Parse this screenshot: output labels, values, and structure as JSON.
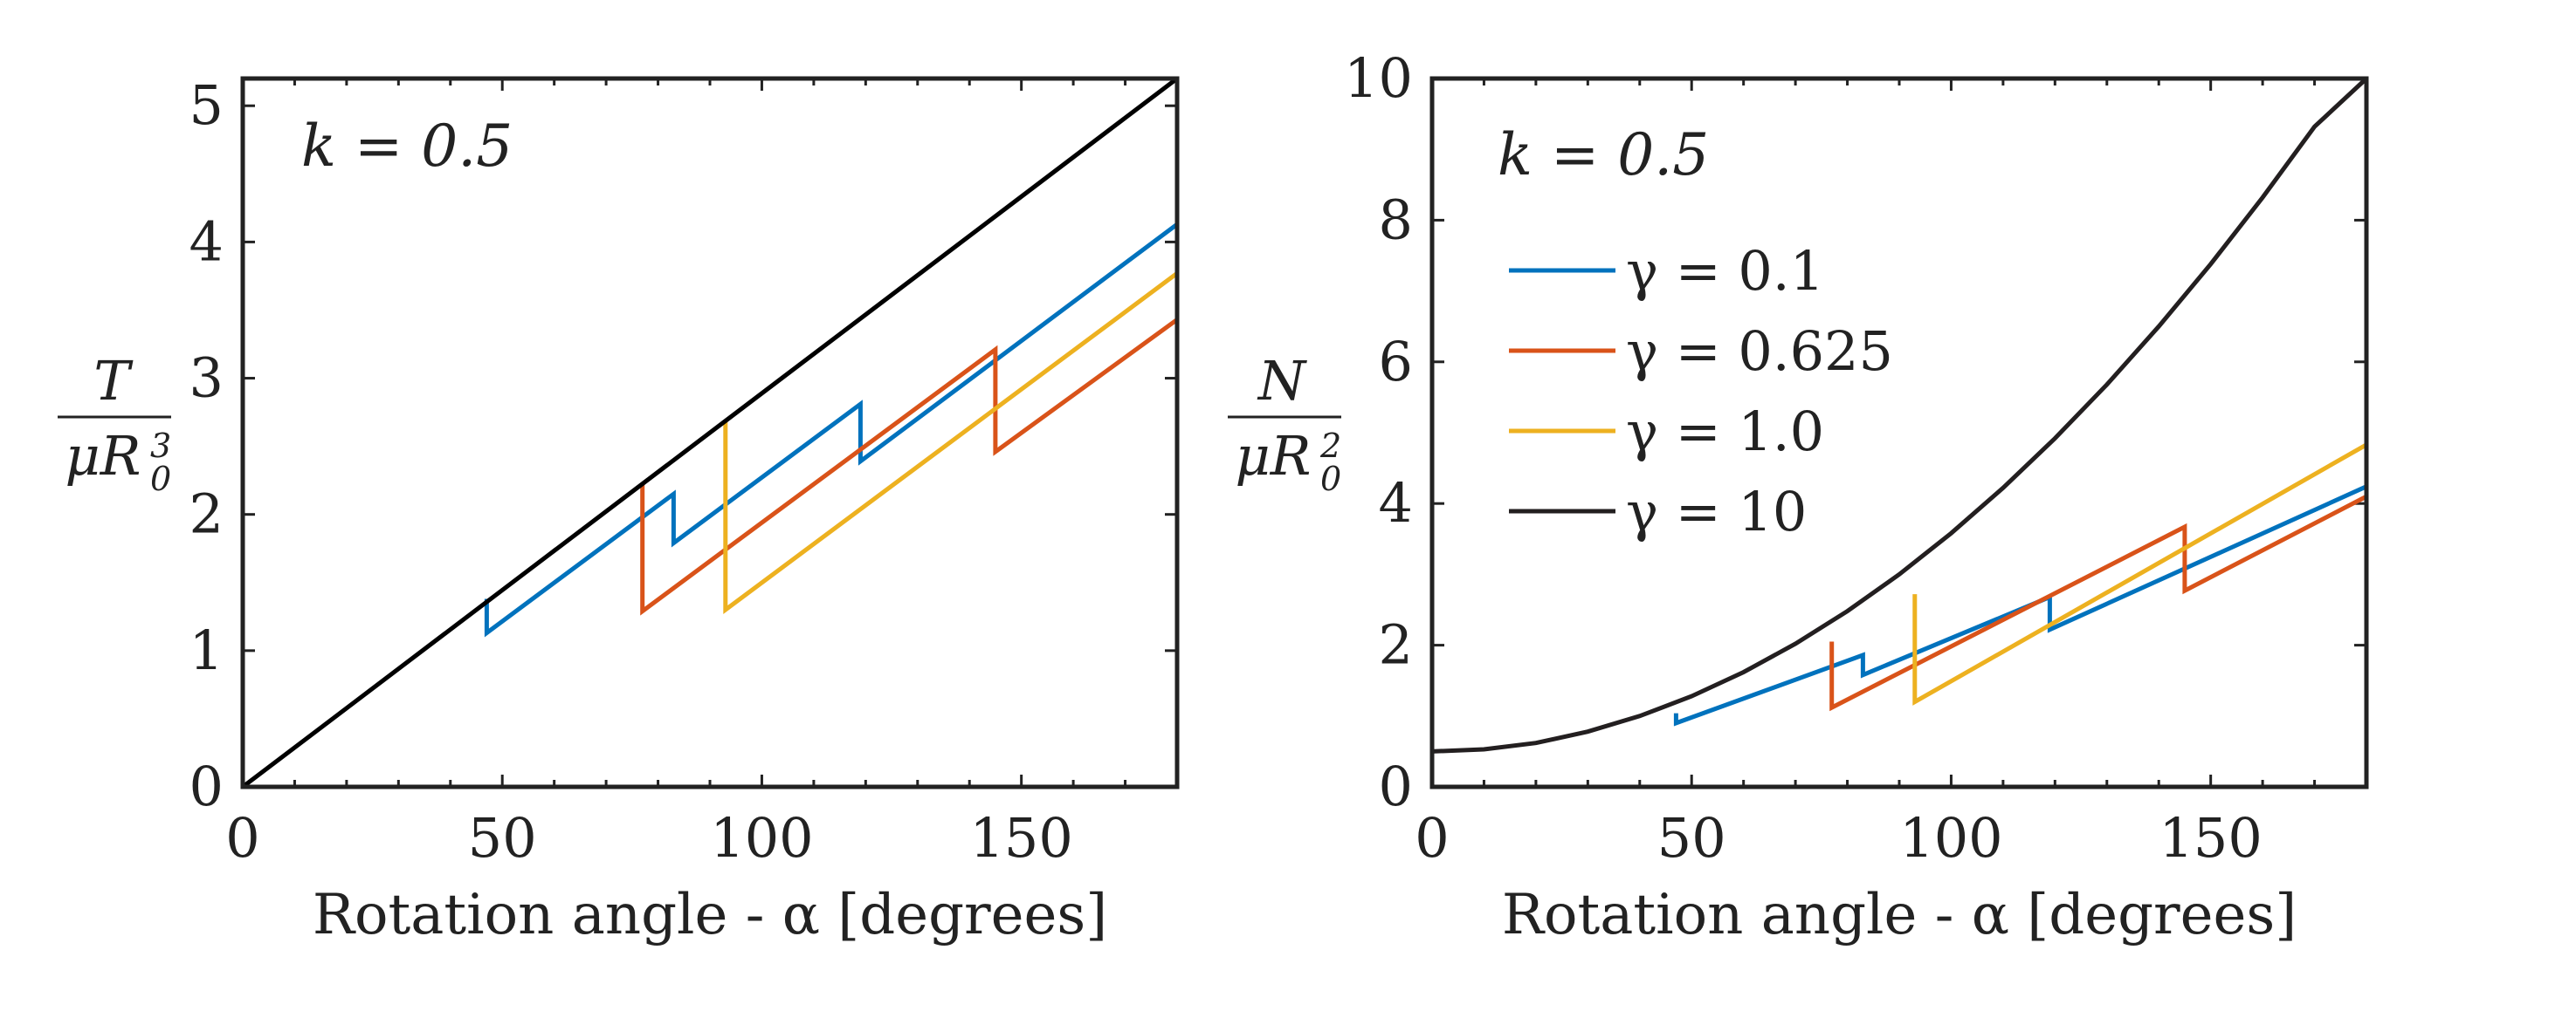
{
  "chart_data": [
    {
      "type": "line",
      "title": "",
      "xlabel": "Rotation angle - α [degrees]",
      "ylabel_numerator": "T",
      "ylabel_denominator": "μR",
      "ylabel_sub": "0",
      "ylabel_sup": "3",
      "annotation": "k = 0.5",
      "xlim": [
        0,
        180
      ],
      "ylim": [
        0,
        5.2
      ],
      "xticks": [
        0,
        50,
        100,
        150
      ],
      "yticks": [
        0,
        1,
        2,
        3,
        4,
        5
      ],
      "grid": false,
      "legend": false,
      "series": [
        {
          "name": "γ = 0.1",
          "color": "#0072BD",
          "points": [
            [
              47,
              1.38
            ],
            [
              47,
              1.13
            ],
            [
              83,
              2.15
            ],
            [
              83,
              1.79
            ],
            [
              119,
              2.81
            ],
            [
              119,
              2.39
            ],
            [
              180,
              4.13
            ]
          ]
        },
        {
          "name": "γ = 0.625",
          "color": "#D95319",
          "points": [
            [
              77,
              2.23
            ],
            [
              77,
              1.29
            ],
            [
              145,
              3.21
            ],
            [
              145,
              2.46
            ],
            [
              180,
              3.43
            ]
          ]
        },
        {
          "name": "γ = 1.0",
          "color": "#EDB120",
          "points": [
            [
              93,
              2.68
            ],
            [
              93,
              1.3
            ],
            [
              180,
              3.77
            ]
          ]
        },
        {
          "name": "γ = 10",
          "color": "#000000",
          "points": [
            [
              0,
              0
            ],
            [
              180,
              5.2
            ]
          ]
        }
      ]
    },
    {
      "type": "line",
      "title": "",
      "xlabel": "Rotation angle - α [degrees]",
      "ylabel_numerator": "N",
      "ylabel_denominator": "μR",
      "ylabel_sub": "0",
      "ylabel_sup": "2",
      "annotation": "k = 0.5",
      "xlim": [
        0,
        180
      ],
      "ylim": [
        0,
        10
      ],
      "xticks": [
        0,
        50,
        100,
        150
      ],
      "yticks": [
        0,
        2,
        4,
        6,
        8,
        10
      ],
      "grid": false,
      "legend": true,
      "legend_position": "upper-left",
      "series": [
        {
          "name": "γ = 0.1",
          "color": "#0072BD",
          "points": [
            [
              47,
              1.04
            ],
            [
              47,
              0.9
            ],
            [
              83,
              1.86
            ],
            [
              83,
              1.58
            ],
            [
              119,
              2.68
            ],
            [
              119,
              2.22
            ],
            [
              180,
              4.24
            ]
          ]
        },
        {
          "name": "γ = 0.625",
          "color": "#D95319",
          "points": [
            [
              77,
              2.05
            ],
            [
              77,
              1.12
            ],
            [
              145,
              3.67
            ],
            [
              145,
              2.77
            ],
            [
              180,
              4.1
            ]
          ]
        },
        {
          "name": "γ = 1.0",
          "color": "#EDB120",
          "points": [
            [
              93,
              2.72
            ],
            [
              93,
              1.2
            ],
            [
              180,
              4.83
            ]
          ]
        },
        {
          "name": "γ = 10",
          "color": "#231F20",
          "points": [
            [
              0,
              0.5
            ],
            [
              10,
              0.53
            ],
            [
              20,
              0.62
            ],
            [
              30,
              0.78
            ],
            [
              40,
              1.0
            ],
            [
              50,
              1.28
            ],
            [
              60,
              1.62
            ],
            [
              70,
              2.02
            ],
            [
              80,
              2.48
            ],
            [
              90,
              3.0
            ],
            [
              100,
              3.58
            ],
            [
              110,
              4.22
            ],
            [
              120,
              4.92
            ],
            [
              130,
              5.68
            ],
            [
              140,
              6.5
            ],
            [
              150,
              7.38
            ],
            [
              160,
              8.32
            ],
            [
              170,
              9.32
            ],
            [
              180,
              10.0
            ]
          ]
        }
      ]
    }
  ]
}
